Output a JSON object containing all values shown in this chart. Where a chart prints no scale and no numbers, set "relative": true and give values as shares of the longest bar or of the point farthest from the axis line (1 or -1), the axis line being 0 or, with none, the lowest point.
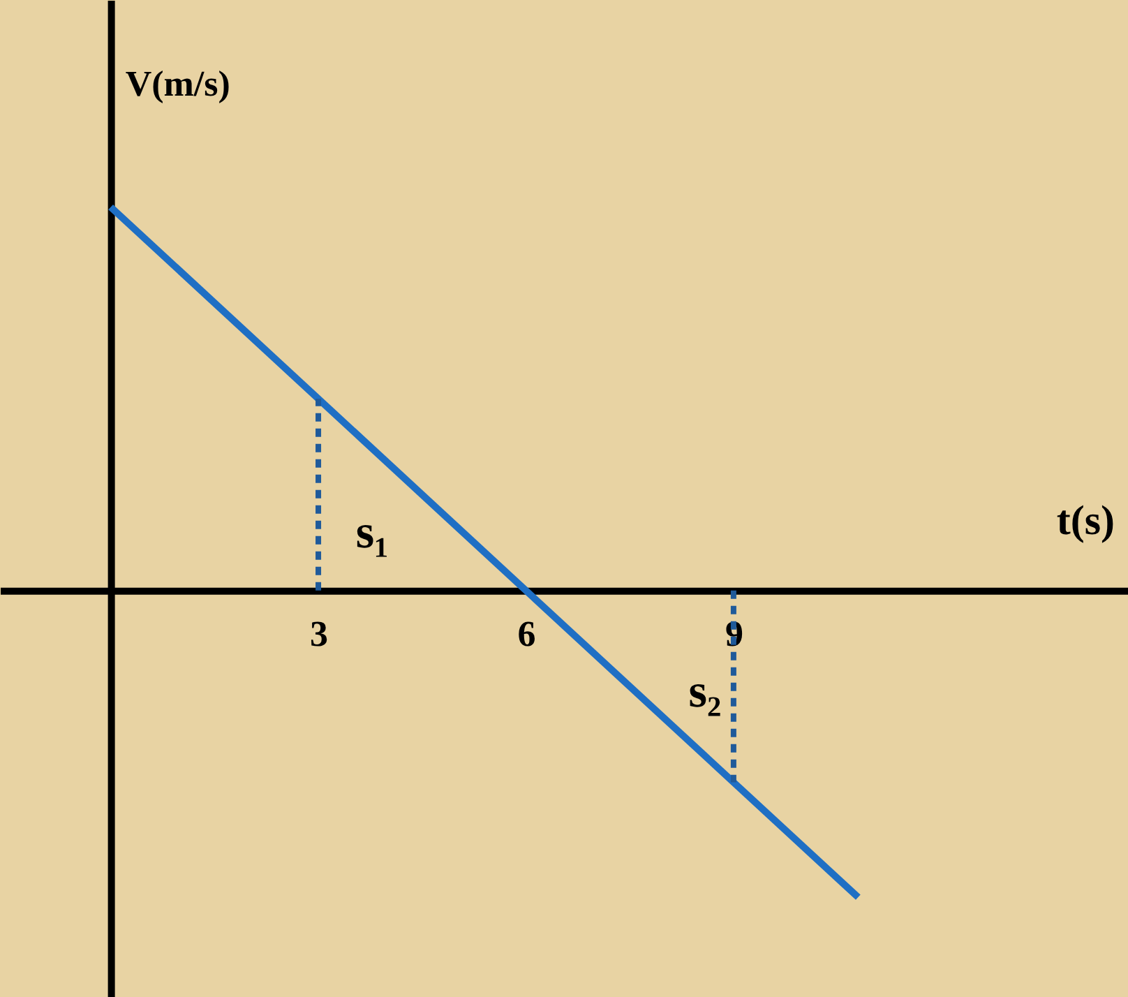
{
  "chart_data": {
    "type": "line",
    "xlabel": "t(s)",
    "ylabel": "V(m/s)",
    "relative": true,
    "x": [
      0,
      10.8
    ],
    "series": [
      {
        "color": "#1f6fc4",
        "values": [
          1,
          -0.8
        ]
      }
    ],
    "xlim": [
      -1.6,
      14.7
    ],
    "xticks": [
      3,
      6,
      9
    ],
    "tick_labels": "x",
    "grid": false,
    "marker": "none",
    "line_style": "solid",
    "ref_lines": [
      {
        "axis": "x",
        "value": 3,
        "color": "#1f5a9a",
        "line_style": "dashed"
      },
      {
        "axis": "x",
        "value": 9,
        "color": "#1f5a9a",
        "line_style": "dashed"
      }
    ],
    "annotations": [
      "s₁",
      "s₂"
    ]
  }
}
